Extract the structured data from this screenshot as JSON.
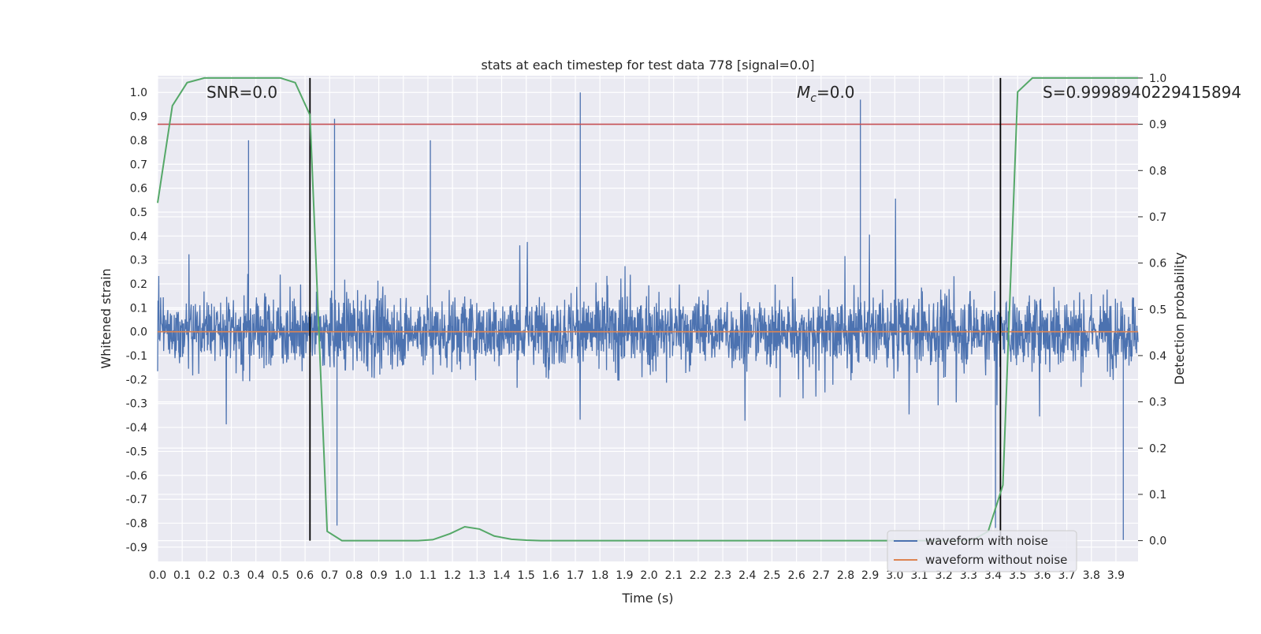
{
  "chart_data": {
    "type": "line",
    "title": "stats at each timestep for test data 778 [signal=0.0]",
    "xlabel": "Time (s)",
    "ylabel": "Whitened strain",
    "y2label": "Detection probability",
    "xlim": [
      0.0,
      3.99
    ],
    "ylim": [
      -0.96,
      1.07
    ],
    "y2lim": [
      -0.045,
      1.005
    ],
    "x_ticks": [
      "0.0",
      "0.1",
      "0.2",
      "0.3",
      "0.4",
      "0.5",
      "0.6",
      "0.7",
      "0.8",
      "0.9",
      "1.0",
      "1.1",
      "1.2",
      "1.3",
      "1.4",
      "1.5",
      "1.6",
      "1.7",
      "1.8",
      "1.9",
      "2.0",
      "2.1",
      "2.2",
      "2.3",
      "2.4",
      "2.5",
      "2.6",
      "2.7",
      "2.8",
      "2.9",
      "3.0",
      "3.1",
      "3.2",
      "3.3",
      "3.4",
      "3.5",
      "3.6",
      "3.7",
      "3.8",
      "3.9"
    ],
    "y_ticks": [
      "1.0",
      "0.9",
      "0.8",
      "0.7",
      "0.6",
      "0.5",
      "0.4",
      "0.3",
      "0.2",
      "0.1",
      "0.0",
      "-0.1",
      "-0.2",
      "-0.3",
      "-0.4",
      "-0.5",
      "-0.6",
      "-0.7",
      "-0.8",
      "-0.9"
    ],
    "y2_ticks": [
      "1.0",
      "0.9",
      "0.8",
      "0.7",
      "0.6",
      "0.5",
      "0.4",
      "0.3",
      "0.2",
      "0.1",
      "0.0"
    ],
    "annotations": {
      "snr": "SNR=0.0",
      "mc_symbol": "M",
      "mc_subscript": "c",
      "mc_value": "=0.0",
      "s_value": "S=0.9998940229415894"
    },
    "vertical_lines_x": [
      0.62,
      3.43
    ],
    "threshold_probability": 0.9,
    "grid": true,
    "legend_position": "bottom-right",
    "series": [
      {
        "name": "waveform with noise",
        "color": "#4c72b0",
        "description_of_values": "dense noise, amplitude mostly within -0.6..0.6",
        "spikes": [
          {
            "x": 0.37,
            "y": 0.8
          },
          {
            "x": 0.72,
            "y": 0.89
          },
          {
            "x": 0.73,
            "y": -0.81
          },
          {
            "x": 1.11,
            "y": 0.8
          },
          {
            "x": 1.72,
            "y": 1.0
          },
          {
            "x": 2.86,
            "y": 0.97
          },
          {
            "x": 3.93,
            "y": -0.87
          },
          {
            "x": 3.41,
            "y": -0.82
          }
        ]
      },
      {
        "name": "waveform without noise",
        "color": "#dd8452",
        "values": 0.0
      },
      {
        "color": "#55a868",
        "axis": "right",
        "x": [
          0.0,
          0.06,
          0.12,
          0.19,
          0.25,
          0.31,
          0.37,
          0.44,
          0.5,
          0.56,
          0.62,
          0.69,
          0.75,
          0.81,
          0.87,
          0.94,
          1.0,
          1.06,
          1.12,
          1.19,
          1.25,
          1.31,
          1.37,
          1.44,
          1.5,
          1.56,
          1.62,
          1.69,
          3.2,
          3.26,
          3.32,
          3.38,
          3.44,
          3.5,
          3.56,
          3.62,
          3.69,
          3.99
        ],
        "values": [
          0.73,
          0.94,
          0.99,
          1.0,
          1.0,
          1.0,
          1.0,
          1.0,
          1.0,
          0.99,
          0.92,
          0.02,
          0.0,
          0.0,
          0.0,
          0.0,
          0.0,
          0.0,
          0.002,
          0.015,
          0.03,
          0.025,
          0.01,
          0.003,
          0.001,
          0.0,
          0.0,
          0.0,
          0.0,
          0.0,
          0.002,
          0.02,
          0.12,
          0.97,
          1.0,
          1.0,
          1.0,
          1.0
        ]
      }
    ]
  }
}
